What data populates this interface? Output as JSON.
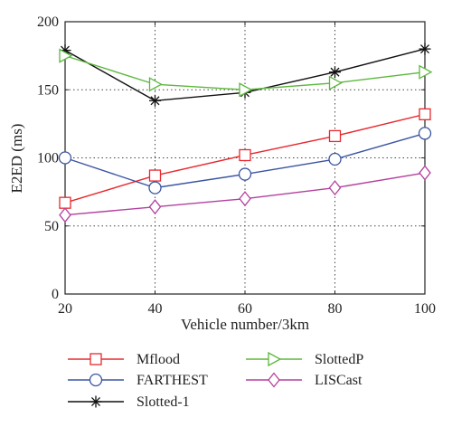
{
  "chart_data": {
    "type": "line",
    "xlabel": "Vehicle number/3km",
    "ylabel": "E2ED (ms)",
    "x": [
      20,
      40,
      60,
      80,
      100
    ],
    "xlim": [
      20,
      100
    ],
    "ylim": [
      0,
      200
    ],
    "xticks": [
      "20",
      "40",
      "60",
      "80",
      "100"
    ],
    "yticks": [
      "0",
      "50",
      "100",
      "150",
      "200"
    ],
    "grid": "dotted",
    "legend_position": "bottom",
    "series": [
      {
        "name": "Mflood",
        "color": "#e8282e",
        "marker": "square",
        "values": [
          67,
          87,
          102,
          116,
          132
        ]
      },
      {
        "name": "FARTHEST",
        "color": "#3b55a0",
        "marker": "circle",
        "values": [
          100,
          78,
          88,
          99,
          118
        ]
      },
      {
        "name": "Slotted-1",
        "color": "#111111",
        "marker": "asterisk",
        "values": [
          179,
          142,
          148,
          163,
          180
        ]
      },
      {
        "name": "SlottedP",
        "color": "#5cb83c",
        "marker": "triangle-right",
        "values": [
          175,
          154,
          150,
          155,
          163
        ]
      },
      {
        "name": "LISCast",
        "color": "#b3419f",
        "marker": "diamond",
        "values": [
          58,
          64,
          70,
          78,
          89
        ]
      }
    ]
  }
}
